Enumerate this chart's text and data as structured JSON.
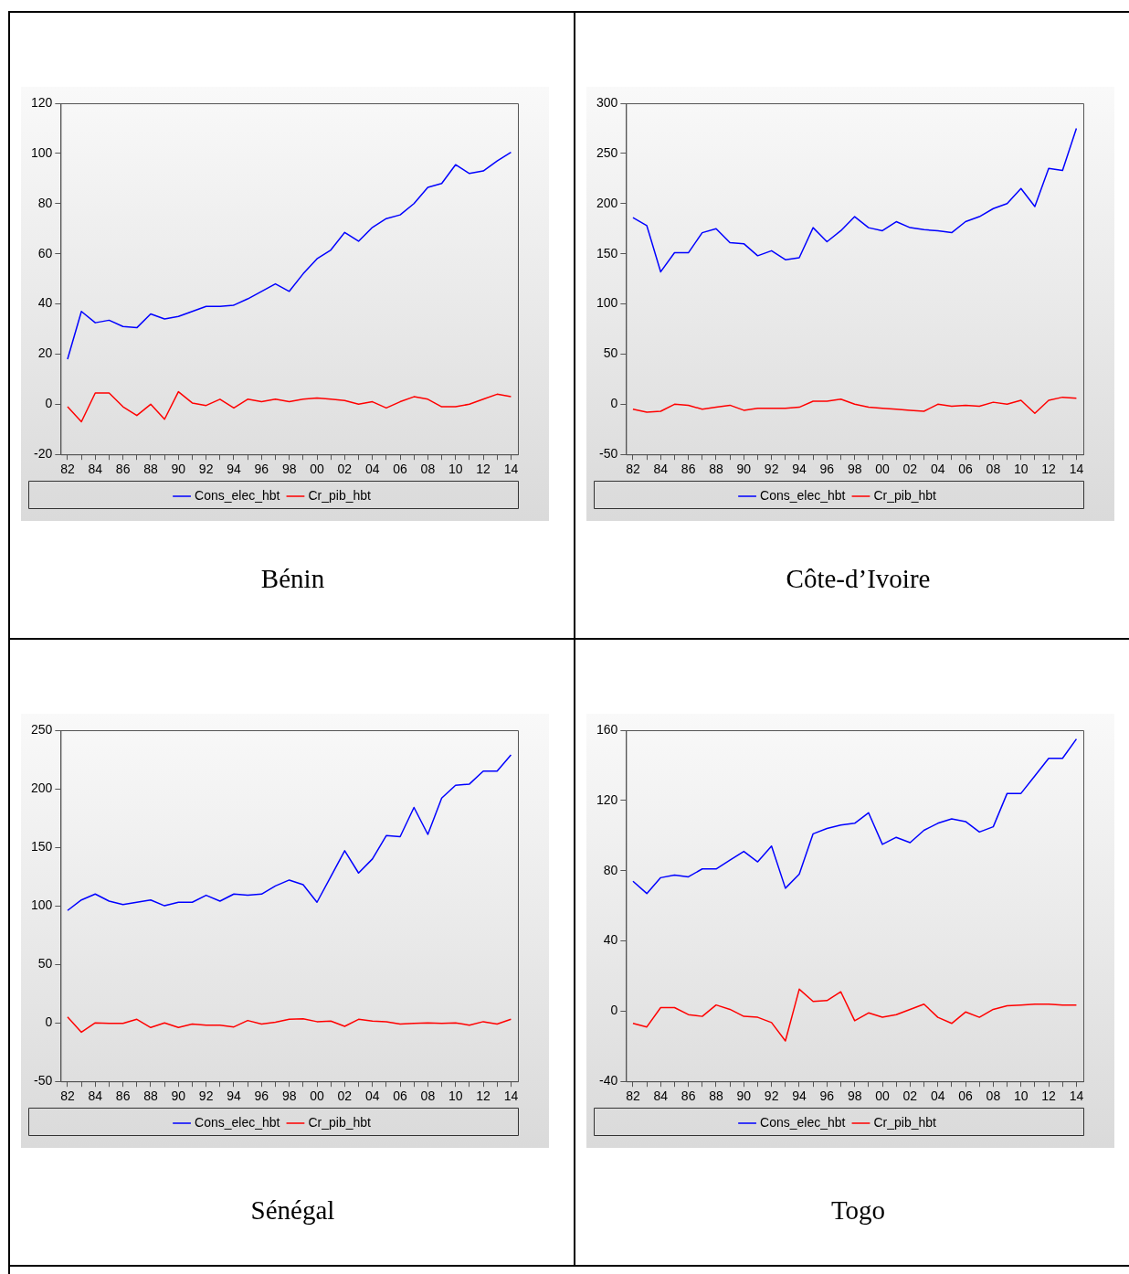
{
  "chart_data": [
    {
      "type": "line",
      "title": "Bénin",
      "categories": [
        "82",
        null,
        "84",
        null,
        "86",
        null,
        "88",
        null,
        "90",
        null,
        "92",
        null,
        "94",
        null,
        "96",
        null,
        "98",
        null,
        "00",
        null,
        "02",
        null,
        "04",
        null,
        "06",
        null,
        "08",
        null,
        "10",
        null,
        "12",
        null,
        "14"
      ],
      "series": [
        {
          "name": "Cons_elec_hbt",
          "color": "#0000ff",
          "values": [
            18,
            37,
            32.5,
            33.5,
            31,
            30.5,
            36,
            34,
            35,
            37,
            39,
            39,
            39.5,
            42,
            45,
            48,
            45,
            52,
            58,
            61.5,
            68.5,
            65,
            70.5,
            74,
            75.5,
            80,
            86.5,
            88,
            95.5,
            92,
            93,
            97,
            100.5
          ]
        },
        {
          "name": "Cr_pib_hbt",
          "color": "#ff0000",
          "values": [
            -1,
            -7,
            4.5,
            4.5,
            -1,
            -4.5,
            0,
            -6,
            5,
            0.5,
            -0.5,
            2,
            -1.5,
            2,
            1,
            2,
            1,
            2,
            2.5,
            2,
            1.5,
            0,
            1,
            -1.5,
            1,
            3,
            2,
            -1,
            -1,
            0,
            2,
            4,
            3
          ]
        }
      ],
      "ylim": [
        -20,
        120
      ],
      "yticks": [
        -20,
        0,
        20,
        40,
        60,
        80,
        100,
        120
      ],
      "legend": "bottom",
      "marker": "none",
      "line_style": "solid"
    },
    {
      "type": "line",
      "title": "Côte-d’Ivoire",
      "categories": [
        "82",
        null,
        "84",
        null,
        "86",
        null,
        "88",
        null,
        "90",
        null,
        "92",
        null,
        "94",
        null,
        "96",
        null,
        "98",
        null,
        "00",
        null,
        "02",
        null,
        "04",
        null,
        "06",
        null,
        "08",
        null,
        "10",
        null,
        "12",
        null,
        "14"
      ],
      "series": [
        {
          "name": "Cons_elec_hbt",
          "color": "#0000ff",
          "values": [
            186,
            178,
            132,
            151,
            151,
            171,
            175,
            161,
            160,
            148,
            153,
            144,
            146,
            176,
            162,
            173,
            187,
            176,
            173,
            182,
            176,
            174,
            173,
            171,
            182,
            187,
            195,
            200,
            215,
            197,
            235,
            233,
            275
          ]
        },
        {
          "name": "Cr_pib_hbt",
          "color": "#ff0000",
          "values": [
            -5,
            -8,
            -7,
            0,
            -1,
            -5,
            -3,
            -1,
            -6,
            -4,
            -4,
            -4,
            -3,
            3,
            3,
            5,
            0,
            -3,
            -4,
            -5,
            -6,
            -7,
            0,
            -2,
            -1,
            -2,
            2,
            0,
            4,
            -9,
            4,
            7,
            6
          ]
        }
      ],
      "ylim": [
        -50,
        300
      ],
      "yticks": [
        -50,
        0,
        50,
        100,
        150,
        200,
        250,
        300
      ],
      "legend": "bottom",
      "marker": "none",
      "line_style": "solid"
    },
    {
      "type": "line",
      "title": "Sénégal",
      "categories": [
        "82",
        null,
        "84",
        null,
        "86",
        null,
        "88",
        null,
        "90",
        null,
        "92",
        null,
        "94",
        null,
        "96",
        null,
        "98",
        null,
        "00",
        null,
        "02",
        null,
        "04",
        null,
        "06",
        null,
        "08",
        null,
        "10",
        null,
        "12",
        null,
        "14"
      ],
      "series": [
        {
          "name": "Cons_elec_hbt",
          "color": "#0000ff",
          "values": [
            96,
            105,
            110,
            104,
            101,
            103,
            105,
            100,
            103,
            103,
            109,
            104,
            110,
            109,
            110,
            117,
            122,
            118,
            103,
            125,
            147,
            128,
            140,
            160,
            159,
            184,
            161,
            192,
            203,
            204,
            215,
            215,
            229
          ]
        },
        {
          "name": "Cr_pib_hbt",
          "color": "#ff0000",
          "values": [
            5,
            -8,
            0,
            -0.5,
            -0.5,
            3,
            -4,
            0,
            -4,
            -1,
            -2,
            -2,
            -3.5,
            2,
            -1,
            0.5,
            3,
            3.5,
            1,
            1.5,
            -3,
            3,
            1.5,
            1,
            -1,
            -0.5,
            0,
            -0.5,
            0,
            -2,
            1,
            -1,
            3
          ]
        }
      ],
      "ylim": [
        -50,
        250
      ],
      "yticks": [
        -50,
        0,
        50,
        100,
        150,
        200,
        250
      ],
      "legend": "bottom",
      "marker": "none",
      "line_style": "solid"
    },
    {
      "type": "line",
      "title": "Togo",
      "categories": [
        "82",
        null,
        "84",
        null,
        "86",
        null,
        "88",
        null,
        "90",
        null,
        "92",
        null,
        "94",
        null,
        "96",
        null,
        "98",
        null,
        "00",
        null,
        "02",
        null,
        "04",
        null,
        "06",
        null,
        "08",
        null,
        "10",
        null,
        "12",
        null,
        "14"
      ],
      "series": [
        {
          "name": "Cons_elec_hbt",
          "color": "#0000ff",
          "values": [
            74,
            67,
            76,
            77.5,
            76.5,
            81,
            81,
            86,
            91,
            85,
            94,
            70,
            78,
            101,
            104,
            106,
            107,
            113,
            95,
            99,
            96,
            103,
            107,
            109.5,
            108,
            102,
            105,
            124,
            124,
            134,
            144,
            144,
            155
          ]
        },
        {
          "name": "Cr_pib_hbt",
          "color": "#ff0000",
          "values": [
            -7,
            -9,
            2,
            2,
            -2,
            -3,
            3.5,
            1,
            -3,
            -3.5,
            -6.5,
            -17,
            12.5,
            5.5,
            6,
            11,
            -5.5,
            -1,
            -3.5,
            -2,
            1,
            4,
            -3.5,
            -7,
            -0.5,
            -3.5,
            1,
            3,
            3.5,
            4,
            4,
            3.5,
            3.5
          ]
        }
      ],
      "ylim": [
        -40,
        160
      ],
      "yticks": [
        -40,
        0,
        40,
        80,
        120,
        160
      ],
      "legend": "bottom",
      "marker": "none",
      "line_style": "solid"
    }
  ]
}
